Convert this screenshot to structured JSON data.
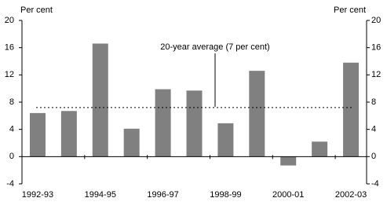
{
  "chart_data": {
    "type": "bar",
    "categories": [
      "1992-93",
      null,
      "1994-95",
      null,
      "1996-97",
      null,
      "1998-99",
      null,
      "2000-01",
      null,
      "2002-03"
    ],
    "values": [
      6.4,
      6.7,
      16.6,
      4.1,
      9.9,
      9.7,
      4.9,
      12.6,
      -1.3,
      2.2,
      13.8
    ],
    "color": "#808080",
    "ylabel": "Per cent",
    "y2label": "Per cent",
    "ylim": [
      -4,
      20
    ],
    "yticks": [
      -4,
      0,
      4,
      8,
      12,
      16,
      20
    ],
    "y2lim": [
      -4,
      20
    ],
    "y2ticks": [
      -4,
      0,
      4,
      8,
      12,
      16,
      20
    ],
    "reference_line": {
      "value": 7.2,
      "label": "20-year average (7 per cent)"
    }
  }
}
